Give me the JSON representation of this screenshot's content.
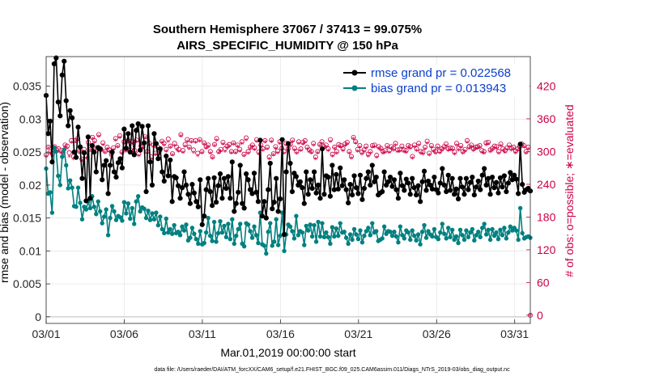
{
  "chart_data": {
    "type": "line",
    "title": "Southern Hemisphere 37067 / 37413 = 99.075%",
    "subtitle": "AIRS_SPECIFIC_HUMIDITY @ 150 hPa",
    "xlabel": "Mar.01,2019 00:00:00 start",
    "ylabel": "rmse and bias (model - observation)",
    "ylabel_right": "# of obs: o=possible; ∗=evaluated",
    "footer": "data file: /Users/raeder/DAI/ATM_forcXX/CAM6_setup/f.e21.FHIST_BGC.f09_025.CAM6assim.011/Diags_NTrS_2019-03/obs_diag_output.nc",
    "xlim": [
      1,
      32
    ],
    "ylim": [
      -0.001,
      0.0395
    ],
    "ylim_right": [
      -15,
      474
    ],
    "x_ticks": [
      1,
      6,
      11,
      16,
      21,
      26,
      31
    ],
    "x_tick_labels": [
      "03/01",
      "03/06",
      "03/11",
      "03/16",
      "03/21",
      "03/26",
      "03/31"
    ],
    "y_ticks": [
      0,
      0.005,
      0.01,
      0.015,
      0.02,
      0.025,
      0.03,
      0.035
    ],
    "y_tick_labels": [
      "0",
      "0.005",
      "0.01",
      "0.015",
      "0.02",
      "0.025",
      "0.03",
      "0.035"
    ],
    "y_right_ticks": [
      0,
      60,
      120,
      180,
      240,
      300,
      360,
      420
    ],
    "y_right_tick_labels": [
      "0",
      "60",
      "120",
      "180",
      "240",
      "300",
      "360",
      "420"
    ],
    "legend_location": "top-right",
    "colors": {
      "rmse": "#000000",
      "bias": "#008080",
      "obs": "#cc0044",
      "legend_text": "#0a3fcf",
      "right_axis": "#cc0044"
    },
    "series": [
      {
        "name": "rmse",
        "legend": "rmse grand pr = 0.022568",
        "values": [
          0.0336,
          0.0278,
          0.0297,
          0.0235,
          0.0384,
          0.0393,
          0.0326,
          0.0305,
          0.0367,
          0.0388,
          0.0328,
          0.029,
          0.0313,
          0.0302,
          0.025,
          0.0242,
          0.0288,
          0.0258,
          0.021,
          0.0249,
          0.0176,
          0.0273,
          0.018,
          0.026,
          0.025,
          0.022,
          0.0257,
          0.0255,
          0.0208,
          0.023,
          0.0237,
          0.0187,
          0.023,
          0.025,
          0.022,
          0.0212,
          0.0234,
          0.024,
          0.0226,
          0.0285,
          0.0256,
          0.0278,
          0.025,
          0.029,
          0.0246,
          0.0283,
          0.0293,
          0.0253,
          0.0289,
          0.0264,
          0.019,
          0.029,
          0.0235,
          0.02,
          0.0278,
          0.0263,
          0.024,
          0.0255,
          0.022,
          0.0206,
          0.0244,
          0.0214,
          0.0238,
          0.0175,
          0.0213,
          0.0211,
          0.0199,
          0.018,
          0.0196,
          0.022,
          0.02,
          0.0186,
          0.0172,
          0.0201,
          0.0188,
          0.0175,
          0.0167,
          0.0208,
          0.014,
          0.0153,
          0.0193,
          0.021,
          0.019,
          0.0169,
          0.0211,
          0.0174,
          0.0199,
          0.0217,
          0.018,
          0.021,
          0.0195,
          0.0213,
          0.018,
          0.0235,
          0.016,
          0.0172,
          0.0189,
          0.023,
          0.0172,
          0.0165,
          0.0217,
          0.0208,
          0.0193,
          0.0187,
          0.0218,
          0.0189,
          0.0175,
          0.0268,
          0.0153,
          0.0175,
          0.015,
          0.0193,
          0.0233,
          0.0164,
          0.0174,
          0.021,
          0.016,
          0.0179,
          0.0269,
          0.0125,
          0.022,
          0.0263,
          0.0233,
          0.019,
          0.0218,
          0.0213,
          0.02,
          0.0205,
          0.0196,
          0.0172,
          0.022,
          0.0186,
          0.0208,
          0.0195,
          0.022,
          0.0188,
          0.02,
          0.018,
          0.0255,
          0.0186,
          0.0214,
          0.0212,
          0.0183,
          0.023,
          0.0193,
          0.0216,
          0.0194,
          0.0226,
          0.0199,
          0.0208,
          0.0193,
          0.0173,
          0.0201,
          0.0185,
          0.0214,
          0.0196,
          0.0187,
          0.0215,
          0.0178,
          0.0195,
          0.021,
          0.022,
          0.02,
          0.023,
          0.0205,
          0.0212,
          0.0185,
          0.0188,
          0.019,
          0.022,
          0.02,
          0.0205,
          0.0212,
          0.0198,
          0.0208,
          0.0193,
          0.018,
          0.0218,
          0.0199,
          0.0192,
          0.0209,
          0.0203,
          0.0186,
          0.021,
          0.0196,
          0.0185,
          0.0199,
          0.0175,
          0.0205,
          0.0221,
          0.0192,
          0.0206,
          0.02,
          0.0194,
          0.0212,
          0.0193,
          0.0188,
          0.0203,
          0.0225,
          0.02,
          0.019,
          0.0215,
          0.0192,
          0.021,
          0.0186,
          0.0194,
          0.0179,
          0.021,
          0.0197,
          0.0186,
          0.021,
          0.0193,
          0.0204,
          0.0212,
          0.0185,
          0.0197,
          0.0206,
          0.0193,
          0.0215,
          0.0225,
          0.02,
          0.021,
          0.0186,
          0.0212,
          0.0196,
          0.0204,
          0.0188,
          0.0211,
          0.0197,
          0.0214,
          0.019,
          0.0203,
          0.0219,
          0.0208,
          0.0215,
          0.0209,
          0.0187,
          0.0262,
          0.0201,
          0.0189,
          0.0193,
          0.0195,
          0.0191
        ]
      },
      {
        "name": "bias",
        "legend": "bias grand pr = 0.013943",
        "values": [
          0.0225,
          0.0187,
          0.0189,
          0.0158,
          0.0257,
          0.0251,
          0.0214,
          0.02,
          0.0243,
          0.0254,
          0.023,
          0.0195,
          0.0207,
          0.0196,
          0.0168,
          0.0167,
          0.0196,
          0.0173,
          0.0148,
          0.0167,
          0.0163,
          0.0175,
          0.0165,
          0.0183,
          0.0167,
          0.0156,
          0.0175,
          0.016,
          0.0142,
          0.0152,
          0.0163,
          0.0124,
          0.015,
          0.0168,
          0.016,
          0.0147,
          0.0153,
          0.0151,
          0.0146,
          0.0174,
          0.0157,
          0.0172,
          0.0149,
          0.0165,
          0.0141,
          0.0175,
          0.0183,
          0.016,
          0.0166,
          0.0164,
          0.015,
          0.0161,
          0.0147,
          0.0157,
          0.0148,
          0.0158,
          0.0139,
          0.0152,
          0.0133,
          0.0127,
          0.0149,
          0.0128,
          0.0133,
          0.0126,
          0.0139,
          0.0127,
          0.0129,
          0.0124,
          0.0137,
          0.0131,
          0.014,
          0.0116,
          0.012,
          0.0135,
          0.0126,
          0.0118,
          0.0111,
          0.013,
          0.011,
          0.0112,
          0.0128,
          0.015,
          0.0123,
          0.0115,
          0.0144,
          0.0114,
          0.0127,
          0.0145,
          0.0128,
          0.0138,
          0.0121,
          0.0141,
          0.0118,
          0.0148,
          0.0111,
          0.0123,
          0.0133,
          0.0141,
          0.0111,
          0.0107,
          0.0142,
          0.014,
          0.013,
          0.012,
          0.0137,
          0.0124,
          0.0112,
          0.0158,
          0.011,
          0.0108,
          0.0096,
          0.0129,
          0.0142,
          0.0108,
          0.0114,
          0.0148,
          0.0109,
          0.0123,
          0.0158,
          0.01,
          0.0125,
          0.014,
          0.0137,
          0.013,
          0.0119,
          0.0153,
          0.0124,
          0.013,
          0.0128,
          0.0109,
          0.0138,
          0.0131,
          0.014,
          0.0122,
          0.0139,
          0.0114,
          0.0144,
          0.0122,
          0.0142,
          0.0121,
          0.0128,
          0.0121,
          0.0111,
          0.0136,
          0.0122,
          0.0134,
          0.0123,
          0.0142,
          0.0128,
          0.0129,
          0.012,
          0.0111,
          0.0125,
          0.0117,
          0.0133,
          0.0125,
          0.0118,
          0.0131,
          0.0113,
          0.0123,
          0.013,
          0.0135,
          0.0124,
          0.0142,
          0.0128,
          0.013,
          0.0115,
          0.0117,
          0.0119,
          0.0137,
          0.0126,
          0.013,
          0.0129,
          0.0123,
          0.0129,
          0.0122,
          0.0113,
          0.0137,
          0.0124,
          0.0119,
          0.0131,
          0.0128,
          0.0117,
          0.0131,
          0.0123,
          0.0116,
          0.0125,
          0.011,
          0.0129,
          0.0139,
          0.012,
          0.013,
          0.0125,
          0.0122,
          0.0133,
          0.0121,
          0.0118,
          0.0128,
          0.0141,
          0.0126,
          0.0119,
          0.0135,
          0.0121,
          0.0132,
          0.0117,
          0.0122,
          0.0112,
          0.0132,
          0.0124,
          0.0117,
          0.0131,
          0.0121,
          0.0128,
          0.0133,
          0.0116,
          0.0124,
          0.0129,
          0.0121,
          0.0135,
          0.0141,
          0.0125,
          0.0132,
          0.0117,
          0.0133,
          0.0123,
          0.0128,
          0.0118,
          0.0132,
          0.0124,
          0.0135,
          0.0119,
          0.0128,
          0.0137,
          0.0131,
          0.0135,
          0.0131,
          0.0117,
          0.0165,
          0.0127,
          0.0119,
          0.0121,
          0.0122,
          0.012
        ]
      },
      {
        "name": "obs_possible",
        "marker": "o",
        "axis": "right",
        "values": [
          294,
          308,
          299,
          296,
          309,
          303,
          305,
          302,
          298,
          312,
          310,
          298,
          320,
          291,
          320,
          324,
          300,
          286,
          304,
          292,
          317,
          304,
          326,
          320,
          307,
          331,
          304,
          316,
          300,
          308,
          303,
          295,
          307,
          324,
          311,
          329,
          299,
          318,
          304,
          320,
          303,
          318,
          302,
          321,
          296,
          310,
          309,
          327,
          300,
          315,
          290,
          312,
          297,
          308,
          302,
          319,
          315,
          304,
          323,
          310,
          296,
          315,
          308,
          304,
          331,
          302,
          313,
          322,
          308,
          320,
          303,
          320,
          297,
          322,
          300,
          316,
          309,
          312,
          300,
          290,
          313,
          324,
          300,
          304,
          317,
          305,
          310,
          313,
          300,
          316,
          300,
          312,
          304,
          318,
          295,
          325,
          300,
          308,
          312,
          307,
          322,
          299,
          312,
          305,
          320,
          308,
          290,
          321,
          296,
          309,
          301,
          318,
          306,
          300,
          315,
          305,
          313,
          321,
          306,
          300,
          318,
          305,
          317,
          320,
          308,
          303,
          300,
          315,
          290,
          300,
          313,
          318,
          309,
          312,
          305,
          322,
          295,
          308,
          300,
          313,
          311,
          305,
          314,
          317,
          300,
          291,
          326,
          318,
          304,
          311,
          299,
          303,
          310,
          295,
          300,
          311,
          312,
          293,
          309,
          306,
          300,
          302,
          311,
          302,
          309,
          306,
          315,
          303,
          304,
          310,
          303,
          302,
          311,
          309,
          291,
          312,
          305,
          315,
          300,
          299,
          308,
          319,
          297,
          311,
          304,
          300,
          310,
          301,
          305,
          309,
          314,
          305,
          307,
          306,
          299,
          315,
          306,
          311,
          300,
          304,
          320,
          309,
          312,
          305,
          308,
          309,
          311,
          302,
          300,
          316,
          317,
          303,
          306,
          310,
          309,
          300,
          314,
          305,
          302,
          307,
          312,
          306,
          308,
          301,
          305,
          309,
          314,
          311,
          300,
          308,
          0
        ]
      },
      {
        "name": "obs_evaluated",
        "marker": "*",
        "axis": "right",
        "values": [
          290,
          306,
          296,
          291,
          305,
          300,
          300,
          297,
          297,
          309,
          305,
          290,
          316,
          286,
          318,
          321,
          298,
          283,
          300,
          287,
          312,
          302,
          323,
          316,
          305,
          327,
          300,
          312,
          298,
          304,
          300,
          292,
          303,
          320,
          308,
          325,
          296,
          314,
          300,
          317,
          300,
          314,
          298,
          318,
          292,
          306,
          306,
          324,
          297,
          312,
          286,
          308,
          294,
          305,
          298,
          316,
          311,
          300,
          318,
          307,
          293,
          310,
          303,
          300,
          328,
          298,
          309,
          318,
          305,
          317,
          298,
          316,
          292,
          319,
          297,
          313,
          306,
          308,
          296,
          287,
          310,
          320,
          297,
          300,
          313,
          300,
          306,
          309,
          297,
          313,
          297,
          309,
          300,
          314,
          292,
          321,
          296,
          305,
          309,
          303,
          318,
          295,
          308,
          302,
          317,
          304,
          286,
          318,
          293,
          305,
          297,
          314,
          303,
          296,
          311,
          302,
          310,
          318,
          302,
          296,
          314,
          301,
          313,
          316,
          304,
          299,
          297,
          311,
          286,
          297,
          310,
          314,
          306,
          308,
          301,
          318,
          291,
          305,
          296,
          309,
          307,
          301,
          310,
          313,
          296,
          287,
          323,
          315,
          300,
          307,
          295,
          299,
          306,
          291,
          296,
          307,
          308,
          289,
          305,
          302,
          296,
          298,
          307,
          298,
          305,
          302,
          311,
          299,
          300,
          306,
          299,
          298,
          307,
          305,
          287,
          308,
          301,
          311,
          296,
          295,
          304,
          315,
          293,
          307,
          300,
          296,
          306,
          297,
          301,
          305,
          310,
          301,
          303,
          302,
          295,
          311,
          302,
          307,
          296,
          300,
          316,
          305,
          308,
          301,
          304,
          305,
          307,
          298,
          296,
          312,
          313,
          299,
          302,
          306,
          305,
          296,
          310,
          301,
          298,
          303,
          308,
          302,
          304,
          297,
          301,
          305,
          310,
          307,
          296,
          304,
          0
        ]
      }
    ]
  }
}
